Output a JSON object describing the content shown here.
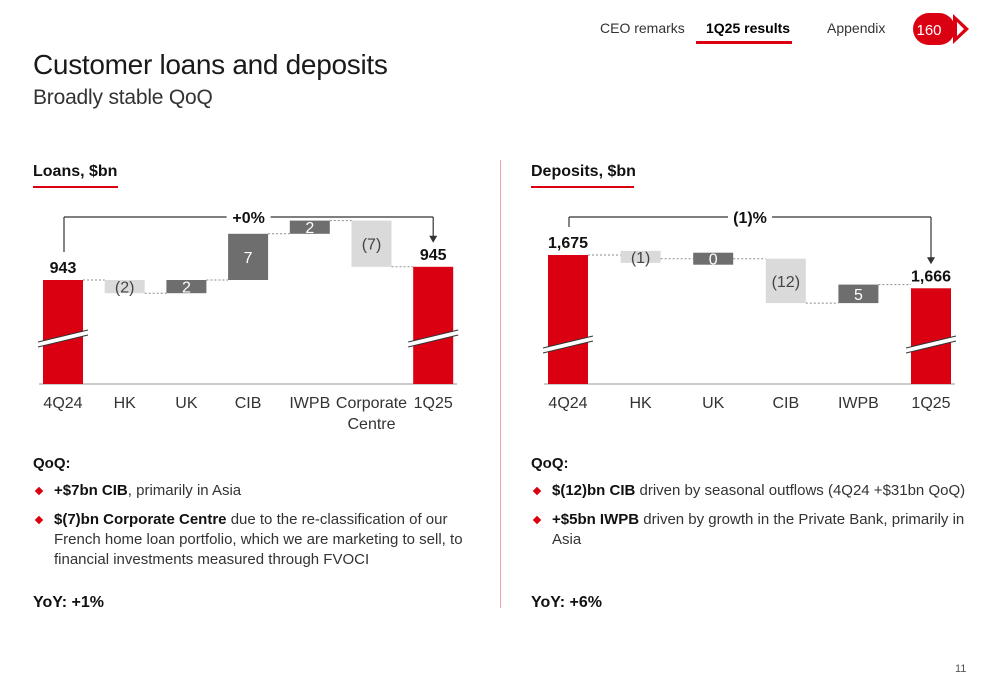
{
  "nav": {
    "items": [
      "CEO remarks",
      "1Q25 results",
      "Appendix"
    ],
    "active_index": 1,
    "logo_text": "160",
    "accent_color": "#db0011"
  },
  "page": {
    "title": "Customer loans and deposits",
    "subtitle": "Broadly stable QoQ",
    "page_number": "11"
  },
  "chart_data": [
    {
      "type": "waterfall",
      "title": "Loans, $bn",
      "categories": [
        "4Q24",
        "HK",
        "UK",
        "CIB",
        "IWPB",
        "Corporate Centre",
        "1Q25"
      ],
      "values": [
        943,
        -2,
        2,
        7,
        2,
        -7,
        945
      ],
      "kinds": [
        "total",
        "delta",
        "delta",
        "delta",
        "delta",
        "delta",
        "total"
      ],
      "value_labels": [
        "943",
        "(2)",
        "2",
        "7",
        "2",
        "(7)",
        "945"
      ],
      "change_label": "+0%",
      "axis_break": true,
      "colors": {
        "total": "#db0011",
        "increase": "#6e6e6e",
        "decrease": "#dadada"
      }
    },
    {
      "type": "waterfall",
      "title": "Deposits, $bn",
      "categories": [
        "4Q24",
        "HK",
        "UK",
        "CIB",
        "IWPB",
        "1Q25"
      ],
      "values": [
        1675,
        -1,
        0,
        -12,
        5,
        1666
      ],
      "kinds": [
        "total",
        "delta",
        "delta",
        "delta",
        "delta",
        "total"
      ],
      "value_labels": [
        "1,675",
        "(1)",
        "0",
        "(12)",
        "5",
        "1,666"
      ],
      "change_label": "(1)%",
      "axis_break": true,
      "colors": {
        "total": "#db0011",
        "increase": "#6e6e6e",
        "decrease": "#dadada"
      }
    }
  ],
  "loans": {
    "qoq_label": "QoQ:",
    "bullets": [
      {
        "bold": "+$7bn CIB",
        "text": ", primarily in Asia"
      },
      {
        "bold": "$(7)bn Corporate Centre",
        "text": " due to the re-classification of our French home loan portfolio, which we are marketing to sell, to financial investments measured through FVOCI"
      }
    ],
    "yoy": "YoY: +1%"
  },
  "deposits": {
    "qoq_label": "QoQ:",
    "bullets": [
      {
        "bold": "$(12)bn CIB",
        "text": " driven by seasonal outflows (4Q24 +$31bn QoQ)"
      },
      {
        "bold": "+$5bn IWPB",
        "text": " driven by growth in the Private Bank, primarily in Asia"
      }
    ],
    "yoy": "YoY: +6%"
  }
}
